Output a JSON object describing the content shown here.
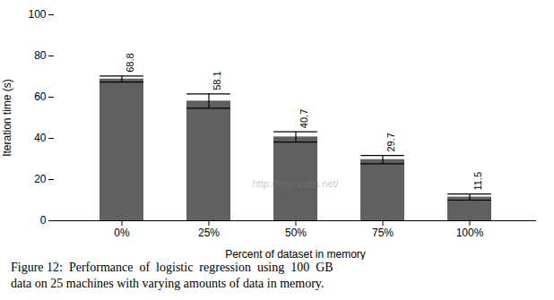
{
  "chart_data": {
    "type": "bar",
    "categories": [
      "0%",
      "25%",
      "50%",
      "75%",
      "100%"
    ],
    "values": [
      68.8,
      58.1,
      40.7,
      29.7,
      11.5
    ],
    "errors": [
      1.5,
      3.5,
      2.5,
      2.0,
      1.5
    ],
    "color": "#606060",
    "xlabel": "Percent of dataset in memory",
    "ylabel": "Iteration time (s)",
    "ylim": [
      0,
      100
    ],
    "yticks": [
      0,
      20,
      40,
      60,
      80,
      100
    ],
    "grid": false,
    "data_labels": true,
    "annotations": [
      "http://blog.csdn.net/"
    ],
    "caption": [
      "Figure 12:  Performance  of  logistic  regression  using  100  GB",
      "data on 25 machines with varying amounts of data in memory."
    ]
  }
}
